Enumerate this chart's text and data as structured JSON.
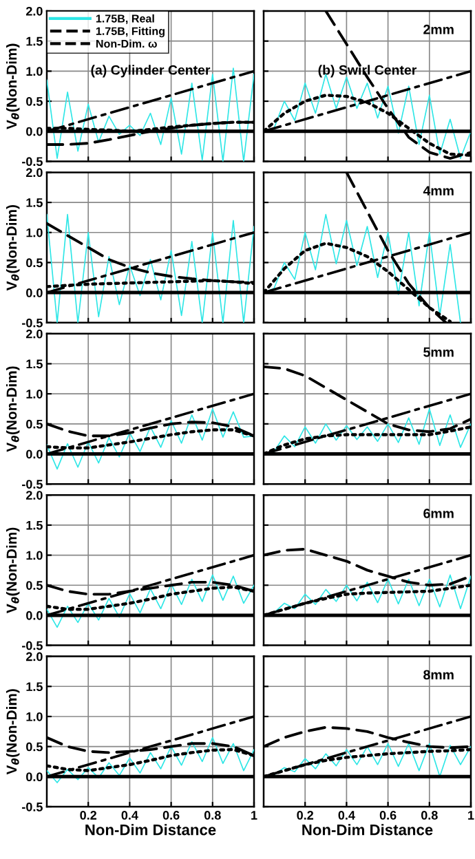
{
  "chart_data": [
    {
      "type": "line",
      "xlim": [
        0,
        1
      ],
      "ylim": [
        -0.5,
        2
      ],
      "xticks": [
        0.2,
        0.4,
        0.6,
        0.8,
        1
      ],
      "yticks": [
        -0.5,
        {
          "value": 0,
          "label": "0.0"
        },
        0.5,
        {
          "value": 1,
          "label": "1.0"
        },
        1.5,
        {
          "value": 2,
          "label": "2.0"
        }
      ],
      "grid": true,
      "tick_labels": "y",
      "ylabel": "V$_{θ}$(Non-Dim)",
      "legend": "top left",
      "annotations": [
        "(a) Cylinder Center"
      ],
      "ref_lines": [
        {
          "axis": "y",
          "value": 0,
          "color": "#000000",
          "line_style": "solid"
        }
      ],
      "series": [
        {
          "name": "1.75B, Real",
          "color": "#2ee6e6",
          "line_style": "solid",
          "x": [
            0,
            0.05,
            0.1,
            0.15,
            0.2,
            0.25,
            0.3,
            0.35,
            0.4,
            0.45,
            0.5,
            0.55,
            0.6,
            0.65,
            0.7,
            0.75,
            0.8,
            0.85,
            0.9,
            0.95,
            1
          ],
          "values": [
            0.85,
            -0.45,
            0.65,
            -0.33,
            0.45,
            -0.18,
            0.25,
            -0.05,
            0.1,
            -0.07,
            0.3,
            -0.22,
            0.55,
            -0.38,
            0.8,
            -0.48,
            0.95,
            -0.5,
            1.05,
            -0.5,
            0.95
          ]
        },
        {
          "name": "1.75B, Fitting",
          "color": "#000000",
          "line_style": "dotted",
          "x": [
            0,
            0.1,
            0.2,
            0.3,
            0.4,
            0.5,
            0.6,
            0.7,
            0.8,
            0.9,
            1
          ],
          "values": [
            0.05,
            0.05,
            0.03,
            0.02,
            0.0,
            0.03,
            0.07,
            0.1,
            0.13,
            0.15,
            0.15
          ]
        },
        {
          "name": "Non-Dim. ω",
          "color": "#000000",
          "line_style": "dashed",
          "x": [
            0,
            0.1,
            0.2,
            0.3,
            0.4,
            0.5,
            0.6,
            0.7,
            0.8,
            0.9,
            1
          ],
          "values": [
            -0.22,
            -0.22,
            -0.2,
            -0.14,
            -0.07,
            0.0,
            0.05,
            0.1,
            0.13,
            0.15,
            0.15
          ]
        },
        {
          "color": "#000000",
          "line_style": "dashdot",
          "x": [
            0,
            1
          ],
          "values": [
            0,
            1
          ]
        }
      ]
    },
    {
      "type": "line",
      "xlim": [
        0,
        1
      ],
      "ylim": [
        -0.5,
        2
      ],
      "xticks": [
        0.2,
        0.4,
        0.6,
        0.8,
        1
      ],
      "yticks": [
        -0.5,
        0,
        0.5,
        1,
        1.5,
        2
      ],
      "grid": true,
      "tick_labels": false,
      "annotations": [
        "2mm",
        "(b) Swirl Center"
      ],
      "ref_lines": [
        {
          "axis": "y",
          "value": 0,
          "color": "#000000",
          "line_style": "solid"
        }
      ],
      "series": [
        {
          "color": "#2ee6e6",
          "line_style": "solid",
          "x": [
            0,
            0.05,
            0.1,
            0.15,
            0.2,
            0.25,
            0.3,
            0.35,
            0.4,
            0.45,
            0.5,
            0.55,
            0.6,
            0.65,
            0.7,
            0.75,
            0.8,
            0.85,
            0.9,
            0.95,
            1
          ],
          "values": [
            0,
            0.05,
            0.5,
            0.18,
            0.8,
            0.3,
            0.95,
            0.38,
            0.9,
            0.38,
            0.8,
            0.22,
            0.75,
            -0.03,
            0.75,
            -0.22,
            0.6,
            -0.38,
            0.2,
            -0.45,
            0
          ]
        },
        {
          "color": "#000000",
          "line_style": "dotted",
          "x": [
            0,
            0.1,
            0.2,
            0.3,
            0.4,
            0.5,
            0.6,
            0.7,
            0.8,
            0.9,
            1
          ],
          "values": [
            0,
            0.3,
            0.5,
            0.6,
            0.58,
            0.48,
            0.3,
            0.05,
            -0.2,
            -0.38,
            -0.4
          ]
        },
        {
          "color": "#000000",
          "line_style": "dashed",
          "x": [
            0.3,
            0.4,
            0.5,
            0.6,
            0.7,
            0.8,
            0.9,
            1
          ],
          "values": [
            2.0,
            1.45,
            0.9,
            0.38,
            -0.1,
            -0.35,
            -0.45,
            -0.35
          ]
        },
        {
          "color": "#000000",
          "line_style": "dashdot",
          "x": [
            0,
            1
          ],
          "values": [
            0,
            1
          ]
        }
      ]
    },
    {
      "type": "line",
      "xlim": [
        0,
        1
      ],
      "ylim": [
        -0.5,
        2
      ],
      "xticks": [
        0.2,
        0.4,
        0.6,
        0.8,
        1
      ],
      "yticks": [
        -0.5,
        {
          "value": 0,
          "label": "0.0"
        },
        0.5,
        {
          "value": 1,
          "label": "1.0"
        },
        1.5,
        {
          "value": 2,
          "label": "2.0"
        }
      ],
      "grid": true,
      "tick_labels": "y",
      "ylabel": "V$_{θ}$(Non-Dim)",
      "ref_lines": [
        {
          "axis": "y",
          "value": 0,
          "color": "#000000",
          "line_style": "solid"
        }
      ],
      "series": [
        {
          "color": "#2ee6e6",
          "line_style": "solid",
          "x": [
            0,
            0.05,
            0.1,
            0.15,
            0.2,
            0.25,
            0.3,
            0.35,
            0.4,
            0.45,
            0.5,
            0.55,
            0.6,
            0.65,
            0.7,
            0.75,
            0.8,
            0.85,
            0.9,
            0.95,
            1
          ],
          "values": [
            1.3,
            -0.5,
            1.3,
            -0.5,
            1.0,
            -0.4,
            0.6,
            -0.2,
            0.45,
            -0.05,
            0.55,
            -0.12,
            0.7,
            -0.38,
            0.85,
            -0.5,
            1.0,
            -0.5,
            1.2,
            -0.5,
            1.1
          ]
        },
        {
          "color": "#000000",
          "line_style": "dotted",
          "x": [
            0,
            0.1,
            0.2,
            0.3,
            0.4,
            0.5,
            0.6,
            0.7,
            0.8,
            0.9,
            1
          ],
          "values": [
            0.1,
            0.12,
            0.14,
            0.15,
            0.16,
            0.17,
            0.18,
            0.19,
            0.2,
            0.18,
            0.15
          ]
        },
        {
          "color": "#000000",
          "line_style": "dashed",
          "x": [
            0,
            0.1,
            0.2,
            0.3,
            0.4,
            0.5,
            0.6,
            0.7,
            0.8,
            0.9,
            1
          ],
          "values": [
            1.15,
            0.95,
            0.75,
            0.55,
            0.42,
            0.33,
            0.27,
            0.23,
            0.2,
            0.18,
            0.17
          ]
        },
        {
          "color": "#000000",
          "line_style": "dashdot",
          "x": [
            0,
            1
          ],
          "values": [
            0,
            1
          ]
        }
      ]
    },
    {
      "type": "line",
      "xlim": [
        0,
        1
      ],
      "ylim": [
        -0.5,
        2
      ],
      "xticks": [
        0.2,
        0.4,
        0.6,
        0.8,
        1
      ],
      "yticks": [
        -0.5,
        0,
        0.5,
        1,
        1.5,
        2
      ],
      "grid": true,
      "tick_labels": false,
      "annotations": [
        "4mm"
      ],
      "ref_lines": [
        {
          "axis": "y",
          "value": 0,
          "color": "#000000",
          "line_style": "solid"
        }
      ],
      "series": [
        {
          "color": "#2ee6e6",
          "line_style": "solid",
          "x": [
            0,
            0.05,
            0.1,
            0.15,
            0.2,
            0.25,
            0.3,
            0.35,
            0.4,
            0.45,
            0.5,
            0.55,
            0.6,
            0.65,
            0.7,
            0.75,
            0.8,
            0.85,
            0.9,
            0.95
          ],
          "values": [
            0,
            0.07,
            0.5,
            0.22,
            1.0,
            0.38,
            1.3,
            0.48,
            1.2,
            0.45,
            1.1,
            0.25,
            1.0,
            -0.03,
            1.0,
            -0.22,
            1.0,
            -0.38,
            0.8,
            -0.5
          ]
        },
        {
          "color": "#000000",
          "line_style": "dotted",
          "x": [
            0,
            0.1,
            0.2,
            0.3,
            0.4,
            0.5,
            0.6,
            0.7,
            0.8,
            0.9
          ],
          "values": [
            0,
            0.4,
            0.7,
            0.82,
            0.75,
            0.6,
            0.35,
            0.05,
            -0.25,
            -0.48
          ]
        },
        {
          "color": "#000000",
          "line_style": "dashed",
          "x": [
            0.4,
            0.5,
            0.6,
            0.7,
            0.8,
            0.88
          ],
          "values": [
            2.0,
            1.35,
            0.7,
            0.15,
            -0.25,
            -0.5
          ]
        },
        {
          "color": "#000000",
          "line_style": "dashdot",
          "x": [
            0,
            1
          ],
          "values": [
            0,
            1
          ]
        }
      ]
    },
    {
      "type": "line",
      "xlim": [
        0,
        1
      ],
      "ylim": [
        -0.5,
        2
      ],
      "xticks": [
        0.2,
        0.4,
        0.6,
        0.8,
        1
      ],
      "yticks": [
        -0.5,
        {
          "value": 0,
          "label": "0.0"
        },
        0.5,
        {
          "value": 1,
          "label": "1.0"
        },
        1.5,
        {
          "value": 2,
          "label": "2.0"
        }
      ],
      "grid": true,
      "tick_labels": "y",
      "ylabel": "V$_{θ}$(Non-Dim)",
      "ref_lines": [
        {
          "axis": "y",
          "value": 0,
          "color": "#000000",
          "line_style": "solid"
        }
      ],
      "series": [
        {
          "color": "#2ee6e6",
          "line_style": "solid",
          "x": [
            0,
            0.05,
            0.1,
            0.15,
            0.2,
            0.25,
            0.3,
            0.35,
            0.4,
            0.45,
            0.5,
            0.55,
            0.6,
            0.65,
            0.7,
            0.75,
            0.8,
            0.85,
            0.9,
            0.95,
            1
          ],
          "values": [
            0.15,
            -0.25,
            0.17,
            -0.22,
            0.2,
            -0.15,
            0.27,
            -0.05,
            0.35,
            0.04,
            0.45,
            0.11,
            0.55,
            0.18,
            0.65,
            0.23,
            0.75,
            0.28,
            0.7,
            0.28,
            0.3
          ]
        },
        {
          "color": "#000000",
          "line_style": "dotted",
          "x": [
            0,
            0.1,
            0.2,
            0.3,
            0.4,
            0.5,
            0.6,
            0.7,
            0.8,
            0.9,
            1
          ],
          "values": [
            0.12,
            0.1,
            0.1,
            0.15,
            0.2,
            0.26,
            0.32,
            0.37,
            0.4,
            0.4,
            0.3
          ]
        },
        {
          "color": "#000000",
          "line_style": "dashed",
          "x": [
            0,
            0.1,
            0.2,
            0.3,
            0.4,
            0.5,
            0.6,
            0.7,
            0.8,
            0.9,
            1
          ],
          "values": [
            0.5,
            0.38,
            0.3,
            0.3,
            0.35,
            0.43,
            0.5,
            0.53,
            0.52,
            0.45,
            0.3
          ]
        },
        {
          "color": "#000000",
          "line_style": "dashdot",
          "x": [
            0,
            1
          ],
          "values": [
            0,
            1
          ]
        }
      ]
    },
    {
      "type": "line",
      "xlim": [
        0,
        1
      ],
      "ylim": [
        -0.5,
        2
      ],
      "xticks": [
        0.2,
        0.4,
        0.6,
        0.8,
        1
      ],
      "yticks": [
        -0.5,
        0,
        0.5,
        1,
        1.5,
        2
      ],
      "grid": true,
      "tick_labels": false,
      "annotations": [
        "5mm"
      ],
      "ref_lines": [
        {
          "axis": "y",
          "value": 0,
          "color": "#000000",
          "line_style": "solid"
        }
      ],
      "series": [
        {
          "color": "#2ee6e6",
          "line_style": "solid",
          "x": [
            0,
            0.05,
            0.1,
            0.15,
            0.2,
            0.25,
            0.3,
            0.35,
            0.4,
            0.45,
            0.5,
            0.55,
            0.6,
            0.65,
            0.7,
            0.75,
            0.8,
            0.85,
            0.9,
            0.95,
            1
          ],
          "values": [
            0,
            0.04,
            0.3,
            0.12,
            0.45,
            0.18,
            0.5,
            0.23,
            0.47,
            0.24,
            0.45,
            0.21,
            0.5,
            0.19,
            0.6,
            0.16,
            0.75,
            0.14,
            0.65,
            0.11,
            0.5
          ]
        },
        {
          "color": "#000000",
          "line_style": "dotted",
          "x": [
            0,
            0.1,
            0.2,
            0.3,
            0.4,
            0.5,
            0.6,
            0.7,
            0.8,
            0.9,
            1
          ],
          "values": [
            0,
            0.15,
            0.25,
            0.3,
            0.32,
            0.32,
            0.32,
            0.32,
            0.32,
            0.38,
            0.45
          ]
        },
        {
          "color": "#000000",
          "line_style": "dashed",
          "x": [
            0,
            0.1,
            0.2,
            0.3,
            0.4,
            0.5,
            0.6,
            0.7,
            0.8,
            0.9,
            1
          ],
          "values": [
            1.45,
            1.42,
            1.3,
            1.1,
            0.9,
            0.7,
            0.5,
            0.4,
            0.37,
            0.42,
            0.58
          ]
        },
        {
          "color": "#000000",
          "line_style": "dashdot",
          "x": [
            0,
            1
          ],
          "values": [
            0,
            1
          ]
        }
      ]
    },
    {
      "type": "line",
      "xlim": [
        0,
        1
      ],
      "ylim": [
        -0.5,
        2
      ],
      "xticks": [
        0.2,
        0.4,
        0.6,
        0.8,
        1
      ],
      "yticks": [
        -0.5,
        {
          "value": 0,
          "label": "0.0"
        },
        0.5,
        {
          "value": 1,
          "label": "1.0"
        },
        1.5,
        {
          "value": 2,
          "label": "2.0"
        }
      ],
      "grid": true,
      "tick_labels": "y",
      "ylabel": "V$_{θ}$(Non-Dim)",
      "ref_lines": [
        {
          "axis": "y",
          "value": 0,
          "color": "#000000",
          "line_style": "solid"
        }
      ],
      "series": [
        {
          "color": "#2ee6e6",
          "line_style": "solid",
          "x": [
            0,
            0.05,
            0.1,
            0.15,
            0.2,
            0.25,
            0.3,
            0.35,
            0.4,
            0.45,
            0.5,
            0.55,
            0.6,
            0.65,
            0.7,
            0.75,
            0.8,
            0.85,
            0.9,
            0.95,
            1
          ],
          "values": [
            0.1,
            -0.2,
            0.15,
            -0.12,
            0.2,
            -0.08,
            0.28,
            -0.03,
            0.36,
            0.04,
            0.44,
            0.11,
            0.52,
            0.18,
            0.6,
            0.23,
            0.67,
            0.25,
            0.65,
            0.2,
            0.5
          ]
        },
        {
          "color": "#000000",
          "line_style": "dotted",
          "x": [
            0,
            0.1,
            0.2,
            0.3,
            0.4,
            0.5,
            0.6,
            0.7,
            0.8,
            0.9,
            1
          ],
          "values": [
            0.15,
            0.1,
            0.1,
            0.15,
            0.2,
            0.27,
            0.35,
            0.4,
            0.45,
            0.47,
            0.4
          ]
        },
        {
          "color": "#000000",
          "line_style": "dashed",
          "x": [
            0,
            0.1,
            0.2,
            0.3,
            0.4,
            0.5,
            0.6,
            0.7,
            0.8,
            0.9,
            1
          ],
          "values": [
            0.5,
            0.4,
            0.35,
            0.35,
            0.4,
            0.45,
            0.5,
            0.55,
            0.55,
            0.5,
            0.4
          ]
        },
        {
          "color": "#000000",
          "line_style": "dashdot",
          "x": [
            0,
            1
          ],
          "values": [
            0,
            1
          ]
        }
      ]
    },
    {
      "type": "line",
      "xlim": [
        0,
        1
      ],
      "ylim": [
        -0.5,
        2
      ],
      "xticks": [
        0.2,
        0.4,
        0.6,
        0.8,
        1
      ],
      "yticks": [
        -0.5,
        0,
        0.5,
        1,
        1.5,
        2
      ],
      "grid": true,
      "tick_labels": false,
      "annotations": [
        "6mm"
      ],
      "ref_lines": [
        {
          "axis": "y",
          "value": 0,
          "color": "#000000",
          "line_style": "solid"
        }
      ],
      "series": [
        {
          "color": "#2ee6e6",
          "line_style": "solid",
          "x": [
            0,
            0.05,
            0.1,
            0.15,
            0.2,
            0.25,
            0.3,
            0.35,
            0.4,
            0.45,
            0.5,
            0.55,
            0.6,
            0.65,
            0.7,
            0.75,
            0.8,
            0.85,
            0.9,
            0.95,
            1
          ],
          "values": [
            0,
            0.04,
            0.2,
            0.11,
            0.35,
            0.18,
            0.43,
            0.23,
            0.5,
            0.24,
            0.55,
            0.21,
            0.6,
            0.19,
            0.6,
            0.16,
            0.6,
            0.14,
            0.67,
            0.11,
            0.65
          ]
        },
        {
          "color": "#000000",
          "line_style": "dotted",
          "x": [
            0,
            0.1,
            0.2,
            0.3,
            0.4,
            0.5,
            0.6,
            0.7,
            0.8,
            0.9,
            1
          ],
          "values": [
            0,
            0.1,
            0.2,
            0.28,
            0.35,
            0.37,
            0.38,
            0.39,
            0.4,
            0.45,
            0.5
          ]
        },
        {
          "color": "#000000",
          "line_style": "dashed",
          "x": [
            0,
            0.1,
            0.2,
            0.3,
            0.4,
            0.5,
            0.6,
            0.7,
            0.8,
            0.9,
            1
          ],
          "values": [
            1.0,
            1.08,
            1.1,
            1.0,
            0.9,
            0.75,
            0.65,
            0.55,
            0.5,
            0.52,
            0.65
          ]
        },
        {
          "color": "#000000",
          "line_style": "dashdot",
          "x": [
            0,
            1
          ],
          "values": [
            0,
            1
          ]
        }
      ]
    },
    {
      "type": "line",
      "xlim": [
        0,
        1
      ],
      "ylim": [
        -0.5,
        2
      ],
      "xticks": [
        0.2,
        0.4,
        0.6,
        0.8,
        1
      ],
      "yticks": [
        -0.5,
        {
          "value": 0,
          "label": "0.0"
        },
        0.5,
        {
          "value": 1,
          "label": "1.0"
        },
        1.5,
        {
          "value": 2,
          "label": "2.0"
        }
      ],
      "grid": true,
      "ylabel": "V$_{θ}$(Non-Dim)",
      "xlabel": "Non-Dim Distance",
      "ref_lines": [
        {
          "axis": "y",
          "value": 0,
          "color": "#000000",
          "line_style": "solid"
        }
      ],
      "series": [
        {
          "color": "#2ee6e6",
          "line_style": "solid",
          "x": [
            0,
            0.05,
            0.1,
            0.15,
            0.2,
            0.25,
            0.3,
            0.35,
            0.4,
            0.45,
            0.5,
            0.55,
            0.6,
            0.65,
            0.7,
            0.75,
            0.8,
            0.85,
            0.9,
            0.95,
            1
          ],
          "values": [
            0.1,
            -0.1,
            0.12,
            -0.05,
            0.15,
            -0.02,
            0.23,
            0.02,
            0.31,
            0.06,
            0.4,
            0.13,
            0.5,
            0.19,
            0.58,
            0.25,
            0.65,
            0.22,
            0.55,
            0.1,
            0.45
          ]
        },
        {
          "color": "#000000",
          "line_style": "dotted",
          "x": [
            0,
            0.1,
            0.2,
            0.3,
            0.4,
            0.5,
            0.6,
            0.7,
            0.8,
            0.9,
            1
          ],
          "values": [
            0.18,
            0.12,
            0.1,
            0.15,
            0.2,
            0.27,
            0.35,
            0.4,
            0.44,
            0.45,
            0.35
          ]
        },
        {
          "color": "#000000",
          "line_style": "dashed",
          "x": [
            0,
            0.1,
            0.2,
            0.3,
            0.4,
            0.5,
            0.6,
            0.7,
            0.8,
            0.9,
            1
          ],
          "values": [
            0.65,
            0.5,
            0.42,
            0.4,
            0.42,
            0.45,
            0.5,
            0.55,
            0.55,
            0.5,
            0.35
          ]
        },
        {
          "color": "#000000",
          "line_style": "dashdot",
          "x": [
            0,
            1
          ],
          "values": [
            0,
            1
          ]
        }
      ]
    },
    {
      "type": "line",
      "xlim": [
        0,
        1
      ],
      "ylim": [
        -0.5,
        2
      ],
      "xticks": [
        0.2,
        0.4,
        0.6,
        0.8,
        1
      ],
      "yticks": [
        -0.5,
        0,
        0.5,
        1,
        1.5,
        2
      ],
      "grid": true,
      "tick_labels": "x",
      "xlabel": "Non-Dim Distance",
      "annotations": [
        "8mm"
      ],
      "ref_lines": [
        {
          "axis": "y",
          "value": 0,
          "color": "#000000",
          "line_style": "solid"
        }
      ],
      "series": [
        {
          "color": "#2ee6e6",
          "line_style": "solid",
          "x": [
            0,
            0.05,
            0.1,
            0.15,
            0.2,
            0.25,
            0.3,
            0.35,
            0.4,
            0.45,
            0.5,
            0.55,
            0.6,
            0.65,
            0.7,
            0.75,
            0.8,
            0.85,
            0.9,
            0.95,
            1
          ],
          "values": [
            0,
            0.03,
            0.15,
            0.08,
            0.3,
            0.13,
            0.38,
            0.18,
            0.45,
            0.2,
            0.5,
            0.2,
            0.55,
            0.17,
            0.55,
            0.1,
            0.55,
            0,
            0.52,
            0.2,
            0.5
          ]
        },
        {
          "color": "#000000",
          "line_style": "dotted",
          "x": [
            0,
            0.1,
            0.2,
            0.3,
            0.4,
            0.5,
            0.6,
            0.7,
            0.8,
            0.9,
            1
          ],
          "values": [
            0,
            0.1,
            0.2,
            0.27,
            0.32,
            0.35,
            0.38,
            0.4,
            0.42,
            0.43,
            0.45
          ]
        },
        {
          "color": "#000000",
          "line_style": "dashed",
          "x": [
            0,
            0.1,
            0.2,
            0.3,
            0.4,
            0.5,
            0.6,
            0.7,
            0.8,
            0.9,
            1
          ],
          "values": [
            0.5,
            0.65,
            0.75,
            0.82,
            0.8,
            0.75,
            0.65,
            0.57,
            0.5,
            0.48,
            0.5
          ]
        },
        {
          "color": "#000000",
          "line_style": "dashdot",
          "x": [
            0,
            1
          ],
          "values": [
            0,
            1
          ]
        }
      ]
    }
  ]
}
